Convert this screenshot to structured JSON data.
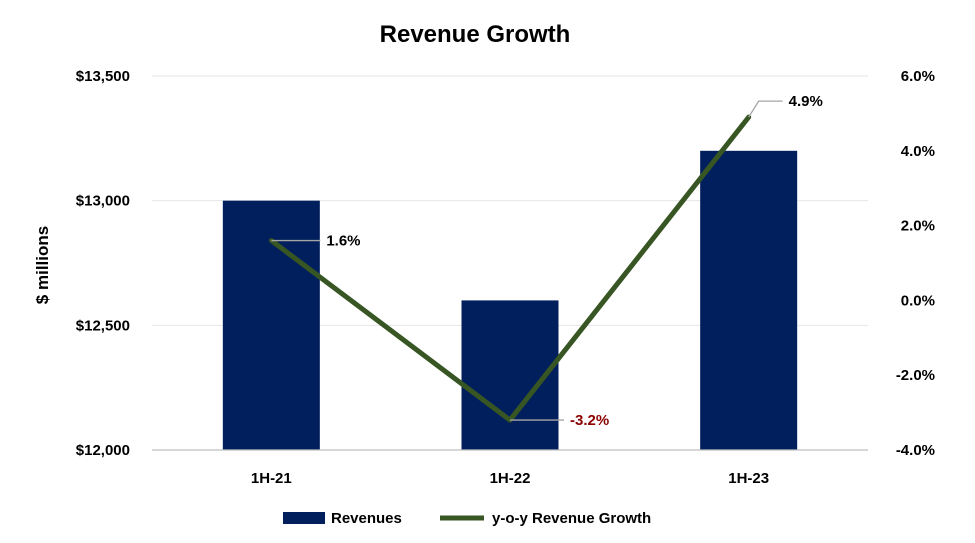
{
  "chart_data": {
    "type": "bar",
    "title": "Revenue Growth",
    "categories": [
      "1H-21",
      "1H-22",
      "1H-23"
    ],
    "series": [
      {
        "name": "Revenues",
        "type": "bar",
        "axis": "left",
        "color": "#001f5c",
        "values": [
          13000,
          12600,
          13200
        ]
      },
      {
        "name": "y-o-y Revenue Growth",
        "type": "line",
        "axis": "right",
        "color": "#375623",
        "values": [
          1.6,
          -3.2,
          4.9
        ]
      }
    ],
    "data_labels": [
      "1.6%",
      "-3.2%",
      "4.9%"
    ],
    "data_label_colors": [
      "#000000",
      "#8b0000",
      "#000000"
    ],
    "ylabel": "$ millions",
    "y_left": {
      "min": 12000,
      "max": 13500,
      "ticks": [
        12000,
        12500,
        13000,
        13500
      ],
      "tick_labels": [
        "$12,000",
        "$12,500",
        "$13,000",
        "$13,500"
      ]
    },
    "y_right": {
      "min": -4,
      "max": 6,
      "ticks": [
        -4,
        -2,
        0,
        2,
        4,
        6
      ],
      "tick_labels": [
        "-4.0%",
        "-2.0%",
        "0.0%",
        "2.0%",
        "4.0%",
        "6.0%"
      ]
    },
    "grid": true,
    "legend": {
      "position": "bottom",
      "entries": [
        "Revenues",
        "y-o-y Revenue Growth"
      ]
    }
  }
}
